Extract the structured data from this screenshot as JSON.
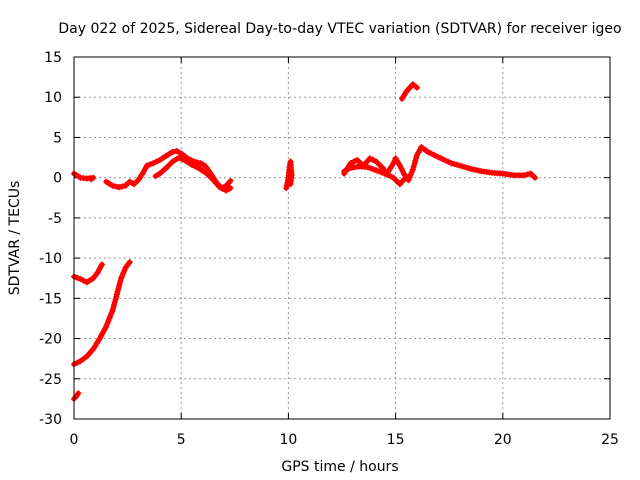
{
  "chart_data": {
    "type": "scatter",
    "title": "Day 022 of 2025, Sidereal Day-to-day VTEC variation (SDTVAR) for receiver igeo",
    "xlabel": "GPS time / hours",
    "ylabel": "SDTVAR / TECUs",
    "xlim": [
      0,
      25
    ],
    "ylim": [
      -30,
      15
    ],
    "xticks": [
      0,
      5,
      10,
      15,
      20,
      25
    ],
    "yticks": [
      15,
      10,
      5,
      0,
      -5,
      -10,
      -15,
      -20,
      -25,
      -30
    ],
    "grid": true,
    "marker_color": "#ff0000",
    "series": [
      {
        "name": "SDTVAR",
        "segments": [
          [
            [
              0.0,
              0.5
            ],
            [
              0.3,
              0.0
            ],
            [
              0.6,
              -0.1
            ],
            [
              0.9,
              0.0
            ],
            [
              0.8,
              -0.2
            ]
          ],
          [
            [
              1.5,
              -0.5
            ],
            [
              1.8,
              -1.0
            ],
            [
              2.1,
              -1.2
            ],
            [
              2.4,
              -1.0
            ],
            [
              2.6,
              -0.5
            ],
            [
              2.8,
              -0.8
            ],
            [
              3.0,
              -0.3
            ],
            [
              3.2,
              0.5
            ],
            [
              3.4,
              1.5
            ],
            [
              3.7,
              1.8
            ],
            [
              4.0,
              2.2
            ],
            [
              4.3,
              2.7
            ],
            [
              4.6,
              3.2
            ],
            [
              4.8,
              3.3
            ],
            [
              5.0,
              3.0
            ],
            [
              5.3,
              2.4
            ],
            [
              5.6,
              2.0
            ],
            [
              5.9,
              1.8
            ],
            [
              6.1,
              1.5
            ],
            [
              6.3,
              0.8
            ],
            [
              6.5,
              0.0
            ],
            [
              6.7,
              -0.8
            ],
            [
              6.9,
              -1.3
            ],
            [
              7.1,
              -1.0
            ],
            [
              7.3,
              -0.4
            ]
          ],
          [
            [
              3.8,
              0.2
            ],
            [
              4.0,
              0.5
            ],
            [
              4.3,
              1.2
            ],
            [
              4.6,
              2.0
            ],
            [
              4.9,
              2.5
            ],
            [
              5.2,
              2.1
            ],
            [
              5.5,
              1.6
            ],
            [
              5.8,
              1.2
            ],
            [
              6.2,
              0.5
            ],
            [
              6.5,
              -0.3
            ],
            [
              6.8,
              -1.2
            ],
            [
              7.1,
              -1.6
            ],
            [
              7.3,
              -1.3
            ]
          ],
          [
            [
              9.9,
              -1.3
            ],
            [
              10.0,
              0.0
            ],
            [
              10.05,
              1.3
            ],
            [
              10.1,
              2.0
            ],
            [
              10.15,
              0.3
            ],
            [
              10.1,
              -0.8
            ]
          ],
          [
            [
              12.6,
              0.5
            ],
            [
              12.9,
              1.8
            ],
            [
              13.2,
              2.2
            ],
            [
              13.5,
              1.5
            ],
            [
              13.8,
              2.4
            ],
            [
              14.1,
              2.0
            ],
            [
              14.4,
              1.2
            ],
            [
              14.6,
              0.5
            ],
            [
              14.9,
              1.8
            ],
            [
              15.0,
              2.4
            ],
            [
              15.2,
              1.5
            ],
            [
              15.4,
              0.4
            ],
            [
              15.6,
              -0.3
            ],
            [
              15.8,
              1.0
            ],
            [
              16.0,
              2.8
            ],
            [
              16.2,
              3.8
            ],
            [
              16.5,
              3.2
            ],
            [
              16.8,
              2.8
            ],
            [
              17.2,
              2.3
            ],
            [
              17.6,
              1.8
            ],
            [
              18.0,
              1.5
            ],
            [
              18.5,
              1.1
            ],
            [
              19.0,
              0.8
            ],
            [
              19.5,
              0.6
            ],
            [
              20.0,
              0.5
            ],
            [
              20.5,
              0.3
            ],
            [
              21.0,
              0.3
            ],
            [
              21.3,
              0.5
            ],
            [
              21.5,
              0.0
            ]
          ],
          [
            [
              12.6,
              0.8
            ],
            [
              12.9,
              1.2
            ],
            [
              13.3,
              1.4
            ],
            [
              13.7,
              1.3
            ],
            [
              14.1,
              0.9
            ],
            [
              14.5,
              0.5
            ],
            [
              14.9,
              0.0
            ],
            [
              15.2,
              -0.8
            ],
            [
              15.4,
              -0.2
            ]
          ],
          [
            [
              15.3,
              9.8
            ],
            [
              15.5,
              10.7
            ],
            [
              15.8,
              11.6
            ],
            [
              16.0,
              11.2
            ]
          ],
          [
            [
              0.0,
              -12.3
            ],
            [
              0.3,
              -12.6
            ],
            [
              0.6,
              -13.0
            ],
            [
              0.9,
              -12.5
            ],
            [
              1.1,
              -11.8
            ],
            [
              1.3,
              -10.8
            ]
          ],
          [
            [
              0.0,
              -23.2
            ],
            [
              0.3,
              -22.8
            ],
            [
              0.6,
              -22.2
            ],
            [
              0.9,
              -21.3
            ],
            [
              1.2,
              -20.0
            ],
            [
              1.5,
              -18.5
            ],
            [
              1.8,
              -16.5
            ],
            [
              2.0,
              -14.5
            ],
            [
              2.2,
              -12.5
            ],
            [
              2.4,
              -11.2
            ],
            [
              2.6,
              -10.5
            ]
          ],
          [
            [
              0.0,
              -27.5
            ],
            [
              0.1,
              -27.2
            ],
            [
              0.2,
              -26.8
            ]
          ]
        ]
      }
    ]
  }
}
